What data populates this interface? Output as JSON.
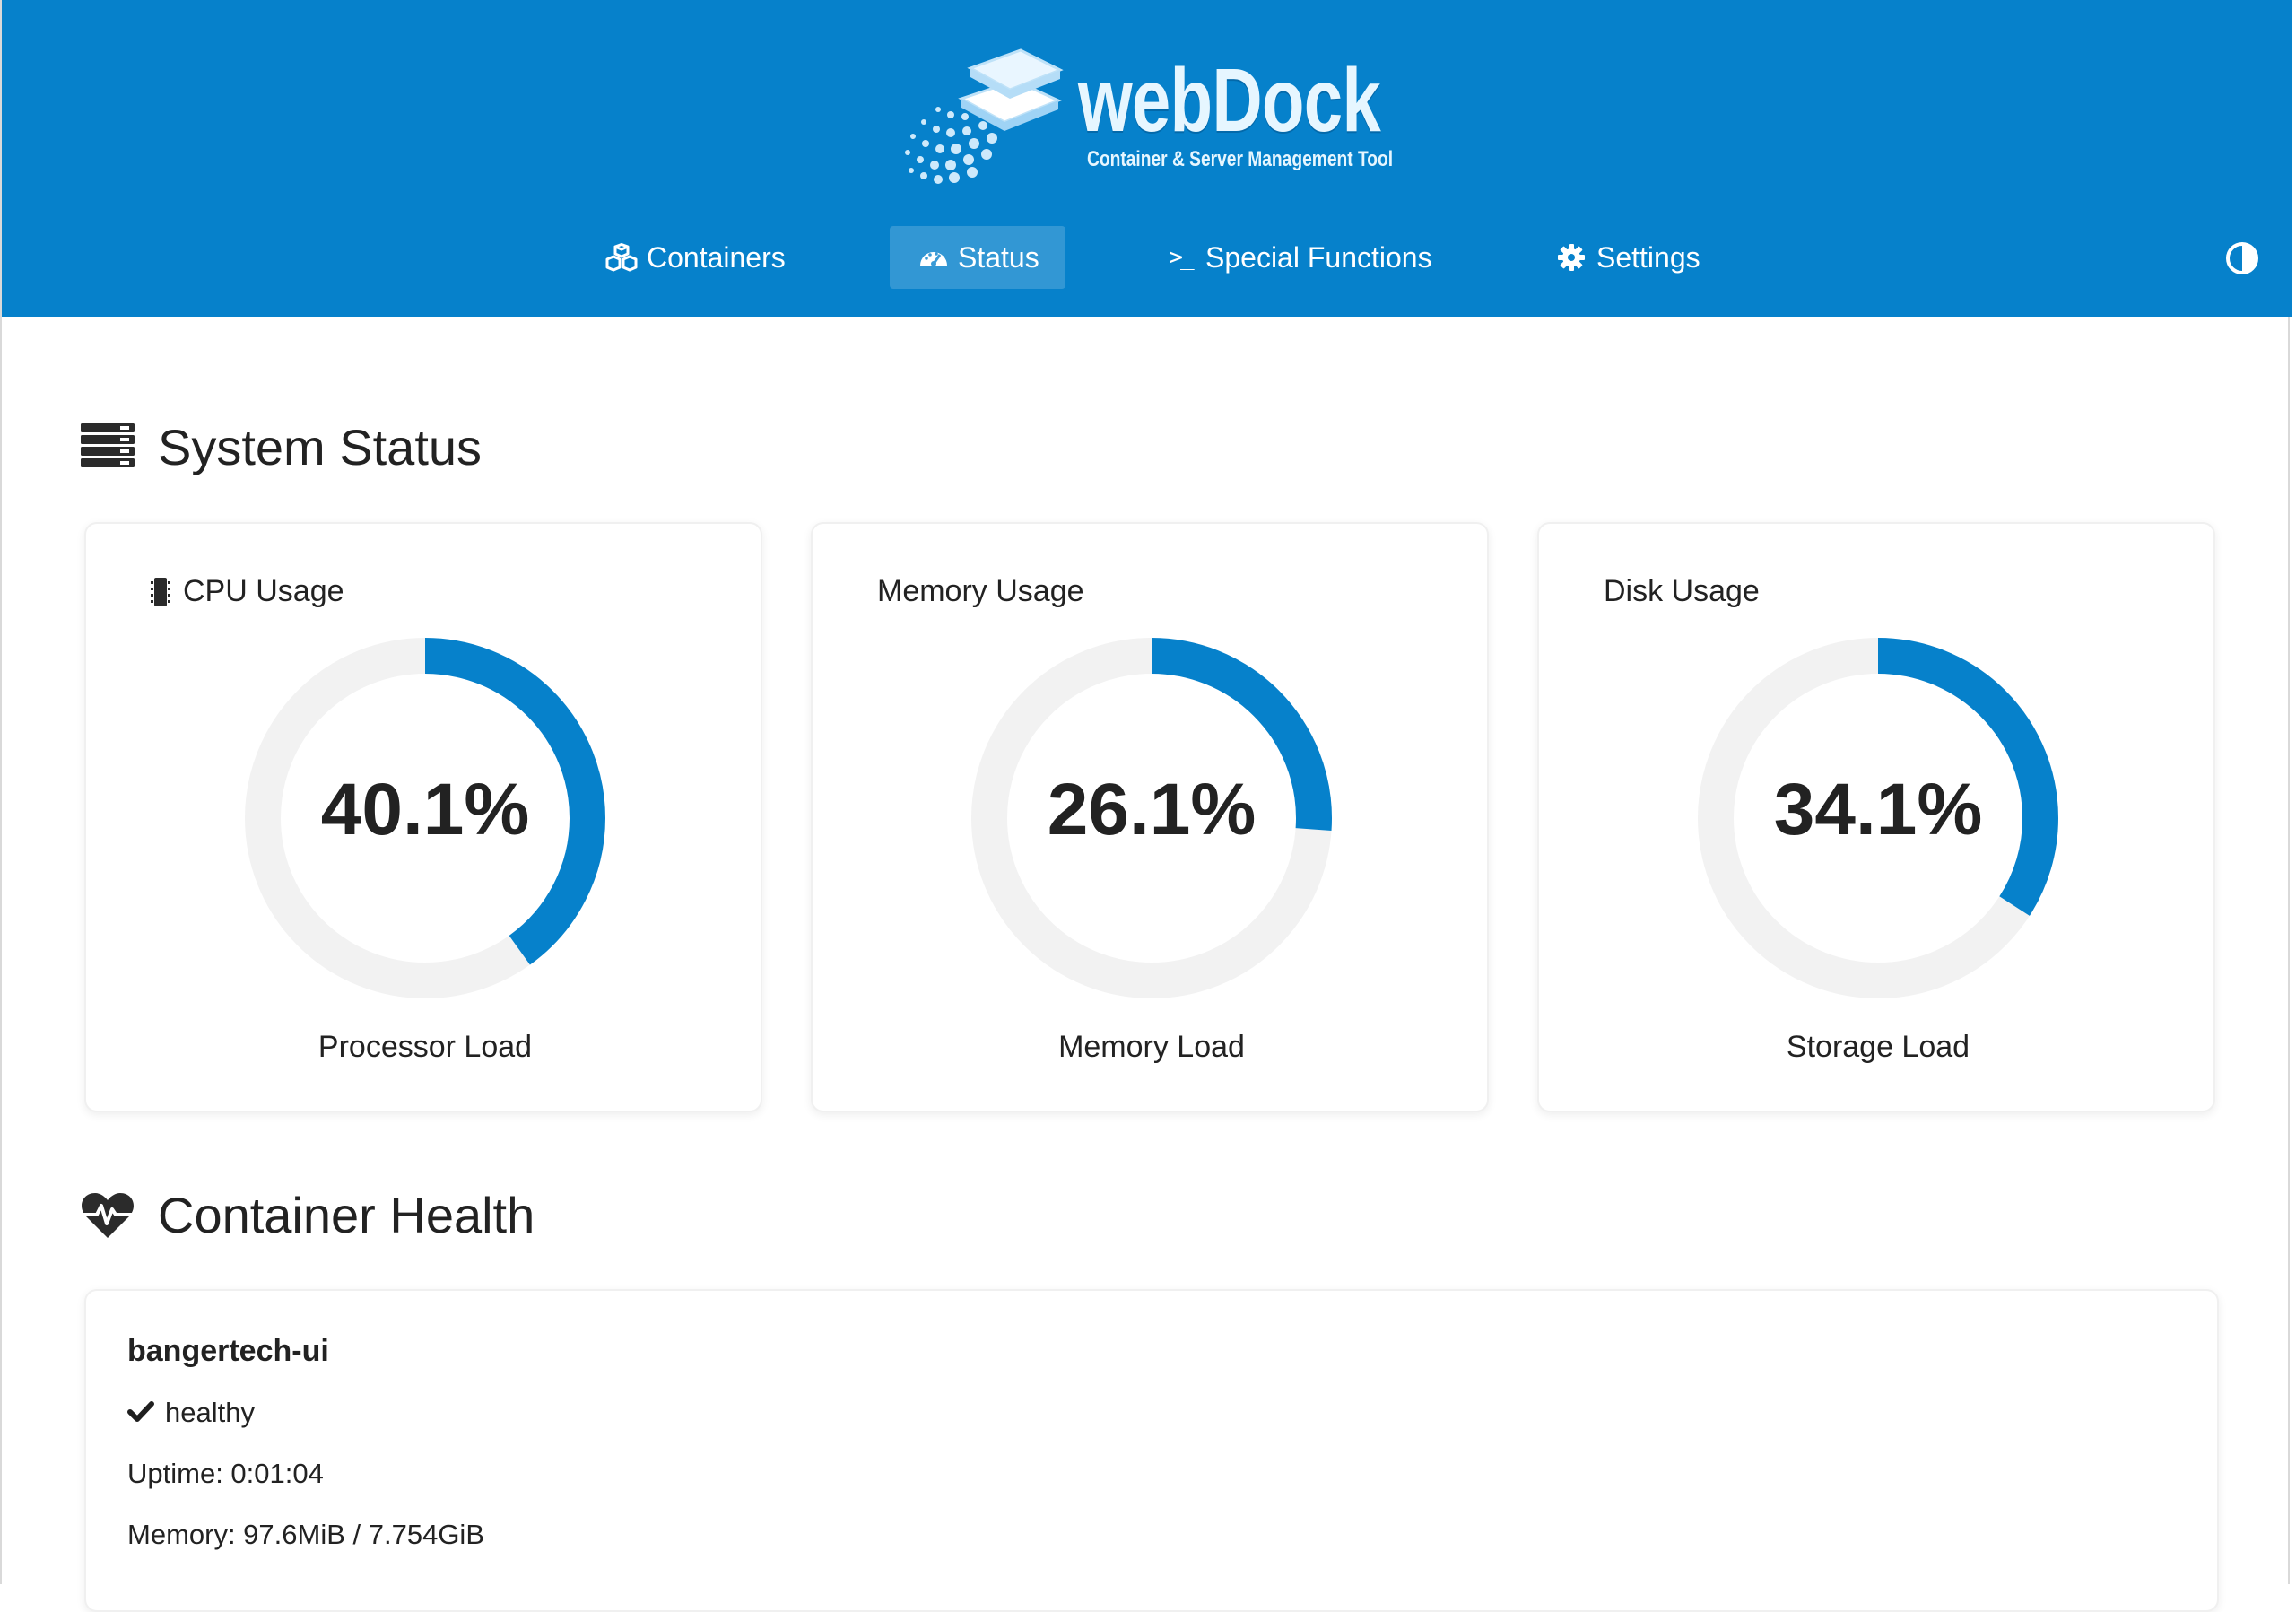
{
  "app": {
    "name": "webDock",
    "tagline": "Container & Server Management Tool"
  },
  "nav": {
    "items": [
      {
        "label": "Containers",
        "icon": "cubes-icon",
        "active": false
      },
      {
        "label": "Status",
        "icon": "gauge-icon",
        "active": true
      },
      {
        "label": "Special Functions",
        "icon": "terminal-icon",
        "active": false
      },
      {
        "label": "Settings",
        "icon": "gear-icon",
        "active": false
      }
    ],
    "theme_toggle_icon": "contrast-icon"
  },
  "colors": {
    "brand": "#0681cb",
    "gauge_fill": "#0681cb",
    "gauge_track": "#f2f2f2"
  },
  "system_status": {
    "heading": "System Status",
    "icon": "server-icon",
    "gauges": [
      {
        "title": "CPU Usage",
        "icon": "microchip-icon",
        "value": 40.1,
        "display": "40.1%",
        "caption": "Processor Load"
      },
      {
        "title": "Memory Usage",
        "icon": "",
        "value": 26.1,
        "display": "26.1%",
        "caption": "Memory Load"
      },
      {
        "title": "Disk Usage",
        "icon": "",
        "value": 34.1,
        "display": "34.1%",
        "caption": "Storage Load"
      }
    ]
  },
  "container_health": {
    "heading": "Container Health",
    "icon": "heartbeat-icon",
    "containers": [
      {
        "name": "bangertech-ui",
        "status": "healthy",
        "status_icon": "check-icon",
        "uptime": "Uptime: 0:01:04",
        "memory": "Memory: 97.6MiB / 7.754GiB"
      }
    ]
  }
}
